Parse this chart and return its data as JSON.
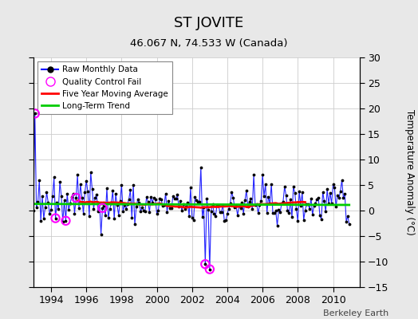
{
  "title": "ST JOVITE",
  "subtitle": "46.067 N, 74.533 W (Canada)",
  "ylabel": "Temperature Anomaly (°C)",
  "credit": "Berkeley Earth",
  "ylim": [
    -15,
    30
  ],
  "yticks": [
    -15,
    -10,
    -5,
    0,
    5,
    10,
    15,
    20,
    25,
    30
  ],
  "xlim": [
    1993.0,
    2011.5
  ],
  "xticks": [
    1994,
    1996,
    1998,
    2000,
    2002,
    2004,
    2006,
    2008,
    2010
  ],
  "bg_color": "#e8e8e8",
  "plot_bg_color": "#ffffff",
  "raw_color": "#0000ff",
  "dot_color": "#000000",
  "ma_color": "#ff0000",
  "trend_color": "#00cc00",
  "qc_color": "#ff00ff",
  "trend_value": 1.0,
  "seed": 42,
  "n_months": 216,
  "start_year": 1993.0,
  "moving_avg_window": 60,
  "qc_fail_times": [
    1993.08,
    1994.25,
    1994.83,
    1995.42,
    1996.92,
    2002.75,
    2003.0
  ],
  "qc_fail_values": [
    19.0,
    -1.5,
    -2.0,
    2.5,
    0.5,
    -10.5,
    -11.5
  ]
}
